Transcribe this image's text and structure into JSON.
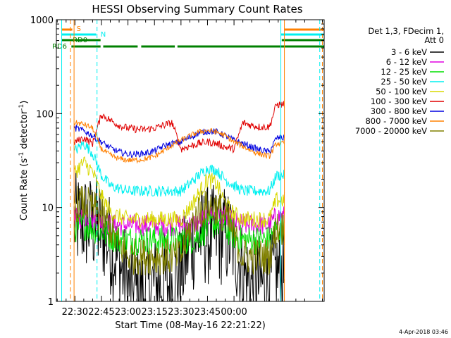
{
  "chart_data": {
    "type": "line",
    "title": "HESSI Observing Summary Count Rates",
    "xlabel": "Start Time (08-May-16 22:21:22)",
    "ylabel_main": "Count Rate (s",
    "ylabel_sup1": "-1",
    "ylabel_mid": " detector",
    "ylabel_sup2": "-1",
    "ylabel_end": ")",
    "y_scale": "log",
    "ylim": [
      1,
      1000
    ],
    "x_ticks": [
      "22:30",
      "22:45",
      "23:00",
      "23:15",
      "23:30",
      "23:45",
      "00:00"
    ],
    "y_ticks": [
      "1",
      "10",
      "100",
      "1000"
    ],
    "legend_header": [
      "Det 1,3, FDecim 1,",
      "Att 0"
    ],
    "legend_placement": "right",
    "series": [
      {
        "name": "3 - 6 keV",
        "color": "#000000",
        "time_min": [
          26,
          30,
          35,
          40,
          45,
          50,
          55,
          60,
          65,
          70,
          75,
          80,
          85,
          90,
          95,
          100,
          105,
          110,
          115,
          120,
          125,
          130,
          135,
          140,
          144
        ],
        "values": [
          6.5,
          7,
          7,
          6.5,
          6,
          4,
          2.5,
          1.5,
          1.2,
          1.3,
          1.5,
          1.6,
          1.5,
          2,
          4,
          5,
          5,
          5,
          5,
          4,
          2,
          1.5,
          1.5,
          1.5,
          2
        ]
      },
      {
        "name": "6 - 12 keV",
        "color": "#e000e0",
        "time_min": [
          26,
          30,
          35,
          40,
          45,
          50,
          55,
          60,
          65,
          70,
          75,
          80,
          85,
          90,
          95,
          100,
          105,
          110,
          115,
          120,
          125,
          130,
          135,
          140,
          144
        ],
        "values": [
          7,
          7.5,
          8,
          7.5,
          7,
          6.5,
          6.5,
          6.5,
          6.5,
          6.5,
          6.5,
          6.5,
          6.5,
          6.5,
          6.5,
          7,
          8,
          8.5,
          8,
          7,
          6.5,
          6.5,
          6.5,
          6.5,
          8
        ]
      },
      {
        "name": "12 - 25 keV",
        "color": "#00e000",
        "time_min": [
          26,
          30,
          35,
          40,
          45,
          50,
          55,
          60,
          65,
          70,
          75,
          80,
          85,
          90,
          95,
          100,
          105,
          110,
          115,
          120,
          125,
          130,
          135,
          140,
          144
        ],
        "values": [
          6,
          6,
          6.5,
          6,
          5.5,
          5,
          4.5,
          4.5,
          4.5,
          4.5,
          4.5,
          4.5,
          4.5,
          4.5,
          4.5,
          5,
          6,
          7,
          6,
          5,
          4.5,
          4.5,
          4.5,
          4.5,
          6
        ]
      },
      {
        "name": "25 - 50 keV",
        "color": "#00f0f0",
        "time_min": [
          26,
          30,
          35,
          40,
          45,
          50,
          55,
          60,
          65,
          70,
          75,
          80,
          85,
          90,
          95,
          100,
          105,
          110,
          115,
          120,
          125,
          130,
          135,
          140,
          144
        ],
        "values": [
          30,
          40,
          48,
          38,
          22,
          17,
          16,
          15,
          15,
          15,
          15,
          15,
          15,
          15,
          18,
          22,
          26,
          25,
          20,
          17,
          15,
          15,
          15,
          15,
          22
        ]
      },
      {
        "name": "50 - 100 keV",
        "color": "#d8d800",
        "time_min": [
          26,
          30,
          35,
          40,
          45,
          50,
          55,
          60,
          65,
          70,
          75,
          80,
          85,
          90,
          95,
          100,
          105,
          110,
          115,
          120,
          125,
          130,
          135,
          140,
          144
        ],
        "values": [
          17,
          24,
          30,
          24,
          13,
          9,
          8,
          7.5,
          7.5,
          7.5,
          7.5,
          7.5,
          7.5,
          7.5,
          10,
          14,
          20,
          18,
          11,
          8.5,
          7.5,
          7.5,
          7.5,
          7.5,
          12
        ]
      },
      {
        "name": "100 - 300 keV",
        "color": "#e00000",
        "time_min": [
          26,
          30,
          35,
          40,
          45,
          50,
          55,
          60,
          65,
          70,
          75,
          80,
          85,
          90,
          95,
          100,
          105,
          110,
          115,
          120,
          125,
          130,
          135,
          140,
          144
        ],
        "values": [
          42,
          50,
          55,
          48,
          98,
          85,
          75,
          70,
          68,
          68,
          70,
          75,
          80,
          42,
          45,
          48,
          50,
          48,
          44,
          42,
          80,
          75,
          72,
          72,
          125
        ]
      },
      {
        "name": "300 - 800 keV",
        "color": "#0000e0",
        "time_min": [
          26,
          30,
          35,
          40,
          45,
          50,
          55,
          60,
          65,
          70,
          75,
          80,
          85,
          90,
          95,
          100,
          105,
          110,
          115,
          120,
          125,
          130,
          135,
          140,
          144
        ],
        "values": [
          65,
          70,
          66,
          58,
          50,
          43,
          39,
          37,
          37,
          38,
          40,
          45,
          48,
          50,
          56,
          62,
          65,
          64,
          58,
          52,
          48,
          44,
          41,
          39,
          55
        ]
      },
      {
        "name": "800 - 7000 keV",
        "color": "#ff8000",
        "time_min": [
          26,
          30,
          35,
          40,
          45,
          50,
          55,
          60,
          65,
          70,
          75,
          80,
          85,
          90,
          95,
          100,
          105,
          110,
          115,
          120,
          125,
          130,
          135,
          140,
          144
        ],
        "values": [
          78,
          80,
          77,
          70,
          42,
          36,
          33,
          32,
          32,
          33,
          35,
          40,
          46,
          52,
          58,
          64,
          66,
          64,
          58,
          50,
          45,
          40,
          37,
          35,
          48
        ]
      },
      {
        "name": "7000 - 20000 keV",
        "color": "#808000",
        "time_min": [
          26,
          30,
          35,
          40,
          45,
          50,
          55,
          60,
          65,
          70,
          75,
          80,
          85,
          90,
          95,
          100,
          105,
          110,
          115,
          120,
          125,
          130,
          135,
          140,
          144
        ],
        "values": [
          10,
          11,
          11,
          10,
          8,
          6,
          4,
          3,
          3,
          3,
          3,
          3,
          3,
          3,
          6,
          9,
          10,
          10,
          8,
          5,
          3,
          3,
          3,
          3,
          6
        ]
      }
    ],
    "flag_bars": [
      {
        "label": "S",
        "color": "#ff8000",
        "level": 0,
        "segments": [
          [
            22.5,
            28.5
          ],
          [
            148.5,
            171
          ]
        ]
      },
      {
        "label": "N",
        "color": "#00f0f0",
        "level": 1,
        "segments": [
          [
            22.5,
            42
          ],
          [
            146.5,
            171
          ]
        ]
      },
      {
        "label": "RD0",
        "color": "#008000",
        "level": 2,
        "segments": [
          [
            22.5,
            44.5
          ],
          [
            147,
            171
          ]
        ]
      },
      {
        "label": "RD6",
        "color": "#008000",
        "level": 3,
        "segments": [
          [
            28,
            44.5
          ],
          [
            46,
            65.5
          ],
          [
            67.5,
            86.5
          ],
          [
            88,
            171
          ]
        ]
      }
    ],
    "vertical_markers": [
      {
        "time_min": 22.5,
        "color": "#00f0f0",
        "style": "solid"
      },
      {
        "time_min": 27.5,
        "color": "#ff8000",
        "style": "dashed"
      },
      {
        "time_min": 29.5,
        "color": "#ff8000",
        "style": "solid"
      },
      {
        "time_min": 42.5,
        "color": "#00f0f0",
        "style": "dashed"
      },
      {
        "time_min": 146.5,
        "color": "#00f0f0",
        "style": "solid"
      },
      {
        "time_min": 148.5,
        "color": "#ff8000",
        "style": "solid"
      },
      {
        "time_min": 168.5,
        "color": "#00f0f0",
        "style": "dashed"
      },
      {
        "time_min": 170,
        "color": "#ff8000",
        "style": "dashed"
      }
    ],
    "x_range_min": [
      19.5,
      171
    ],
    "footer_stamp": "4-Apr-2018 03:46"
  }
}
